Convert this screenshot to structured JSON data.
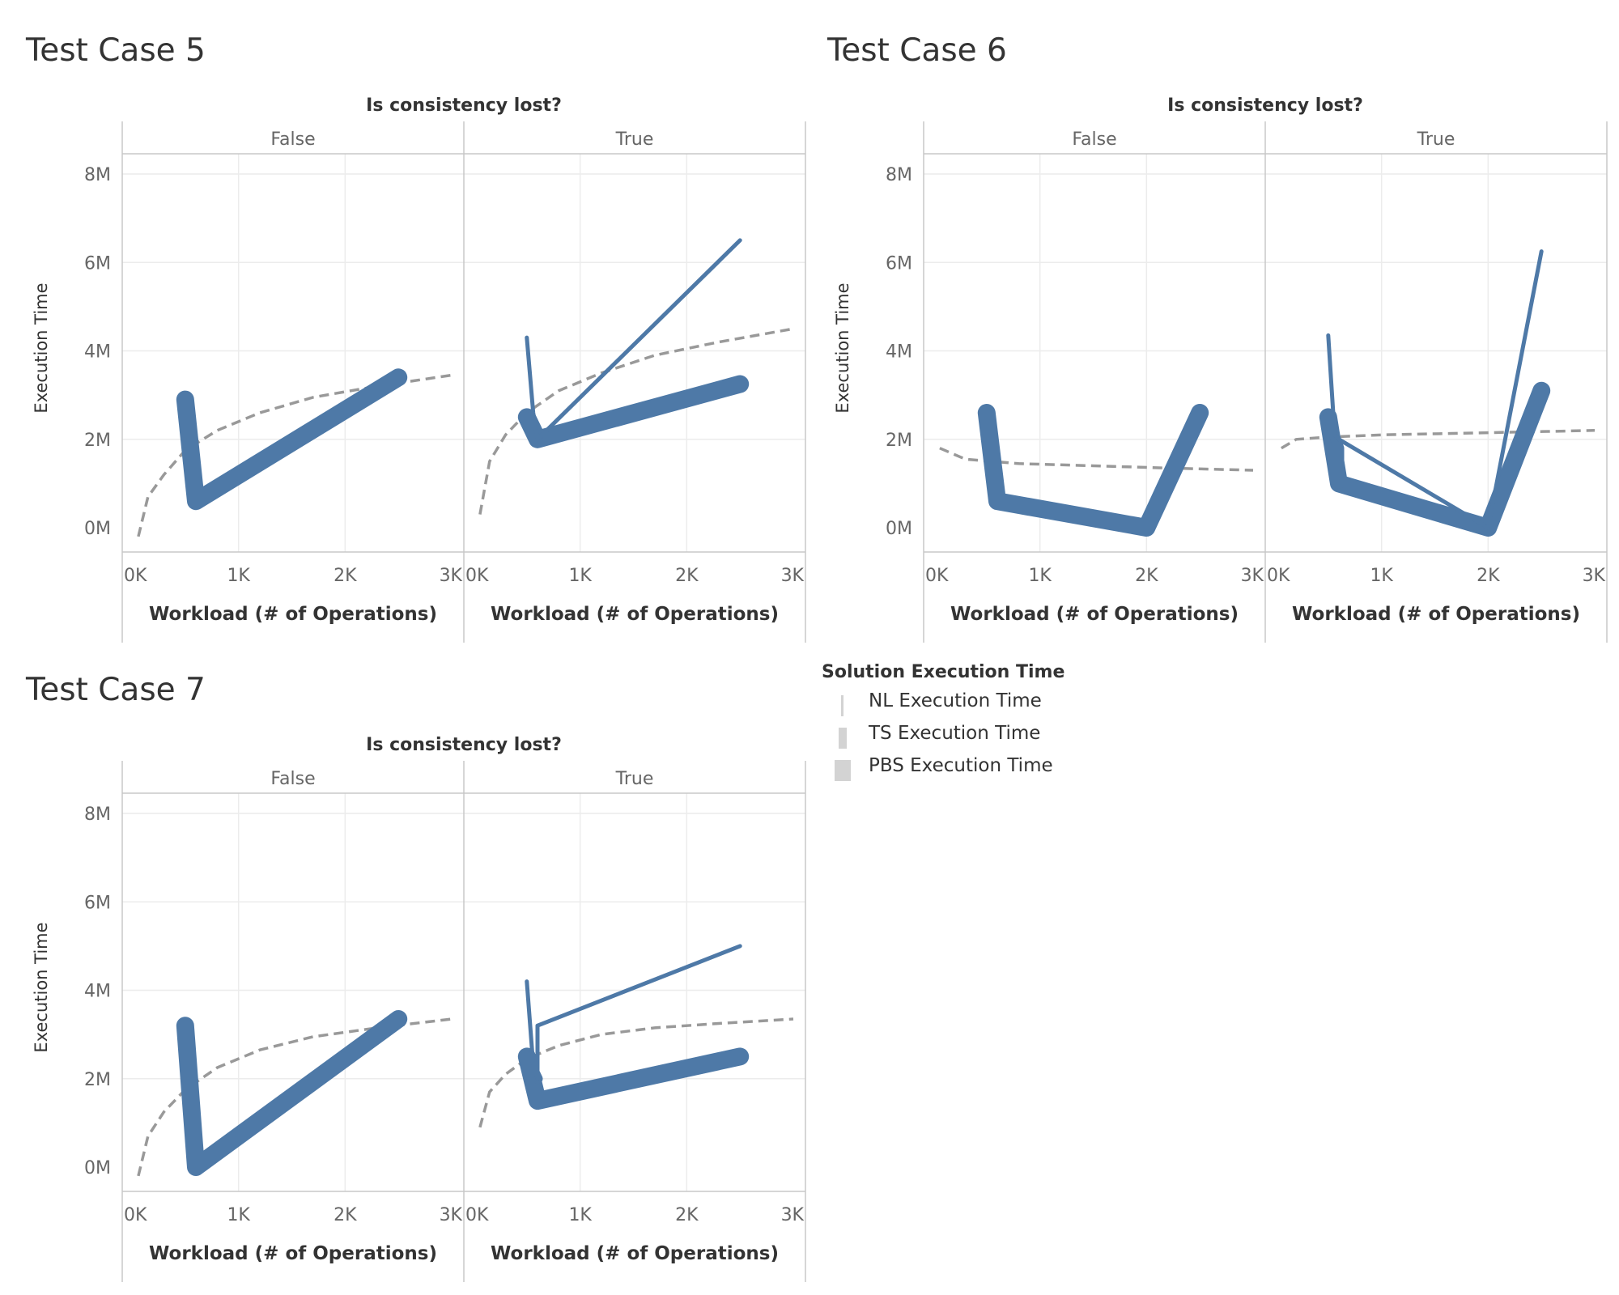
{
  "colors": {
    "line": "#4e79a7",
    "trend": "#999999",
    "grid": "#ececec",
    "axis": "#c8c8c8",
    "tick_text": "#666666",
    "text": "#333333",
    "legend_swatch": "#d3d3d3"
  },
  "chart_data": [
    {
      "type": "line",
      "title": "Test Case 5",
      "facet_title": "Is consistency lost?",
      "xlabel": "Workload (# of Operations)",
      "ylabel": "Execution Time",
      "xlim": [
        0,
        3000
      ],
      "ylim": [
        0,
        8000000
      ],
      "x_ticks": [
        "0K",
        "1K",
        "2K",
        "3K"
      ],
      "y_ticks": [
        "0M",
        "2M",
        "4M",
        "6M",
        "8M"
      ],
      "grid": true,
      "panels": [
        {
          "label": "False",
          "series": [
            {
              "encoding": "PBS Execution Time",
              "x": [
                500,
                600,
                2500
              ],
              "y": [
                2900000,
                600000,
                3400000
              ]
            }
          ],
          "trend": {
            "x": [
              60,
              150,
              300,
              500,
              800,
              1200,
              1700,
              2300,
              3000
            ],
            "y": [
              -200000,
              700000,
              1200000,
              1750000,
              2200000,
              2600000,
              2950000,
              3200000,
              3450000
            ]
          }
        },
        {
          "label": "True",
          "series": [
            {
              "encoding": "PBS Execution Time",
              "x": [
                500,
                600,
                2500
              ],
              "y": [
                2500000,
                2000000,
                3250000
              ]
            },
            {
              "encoding": "TS Execution Time",
              "x": [
                500,
                600
              ],
              "y": [
                2500000,
                2000000
              ]
            },
            {
              "encoding": "NL Execution Time",
              "x": [
                500,
                560,
                600,
                2500
              ],
              "y": [
                4300000,
                2600000,
                2000000,
                6500000
              ]
            }
          ],
          "trend": {
            "x": [
              60,
              150,
              300,
              500,
              800,
              1200,
              1700,
              2300,
              3000
            ],
            "y": [
              300000,
              1500000,
              2100000,
              2600000,
              3100000,
              3500000,
              3900000,
              4200000,
              4500000
            ]
          }
        }
      ]
    },
    {
      "type": "line",
      "title": "Test Case 6",
      "facet_title": "Is consistency lost?",
      "xlabel": "Workload (# of Operations)",
      "ylabel": "Execution Time",
      "xlim": [
        0,
        3000
      ],
      "ylim": [
        0,
        8000000
      ],
      "x_ticks": [
        "0K",
        "1K",
        "2K",
        "3K"
      ],
      "y_ticks": [
        "0M",
        "2M",
        "4M",
        "6M",
        "8M"
      ],
      "grid": true,
      "panels": [
        {
          "label": "False",
          "series": [
            {
              "encoding": "PBS Execution Time",
              "x": [
                500,
                600,
                2000,
                2500
              ],
              "y": [
                2600000,
                600000,
                0,
                2600000
              ]
            }
          ],
          "trend": {
            "x": [
              60,
              300,
              800,
              1500,
              2200,
              3000
            ],
            "y": [
              1800000,
              1550000,
              1450000,
              1400000,
              1350000,
              1300000
            ]
          }
        },
        {
          "label": "True",
          "series": [
            {
              "encoding": "PBS Execution Time",
              "x": [
                500,
                600,
                2000,
                2500
              ],
              "y": [
                2500000,
                1000000,
                0,
                3100000
              ]
            },
            {
              "encoding": "TS Execution Time",
              "x": [
                500,
                600,
                600
              ],
              "y": [
                2500000,
                1800000,
                1000000
              ]
            },
            {
              "encoding": "NL Execution Time",
              "x": [
                500,
                560,
                600,
                2000,
                2500
              ],
              "y": [
                4350000,
                2100000,
                2000000,
                0,
                6250000
              ]
            }
          ],
          "trend": {
            "x": [
              60,
              200,
              500,
              1000,
              2000,
              3000
            ],
            "y": [
              1800000,
              2000000,
              2050000,
              2100000,
              2150000,
              2200000
            ]
          }
        }
      ]
    },
    {
      "type": "line",
      "title": "Test Case 7",
      "facet_title": "Is consistency lost?",
      "xlabel": "Workload (# of Operations)",
      "ylabel": "Execution Time",
      "xlim": [
        0,
        3000
      ],
      "ylim": [
        0,
        8000000
      ],
      "x_ticks": [
        "0K",
        "1K",
        "2K",
        "3K"
      ],
      "y_ticks": [
        "0M",
        "2M",
        "4M",
        "6M",
        "8M"
      ],
      "grid": true,
      "panels": [
        {
          "label": "False",
          "series": [
            {
              "encoding": "PBS Execution Time",
              "x": [
                500,
                600,
                2500
              ],
              "y": [
                3200000,
                0,
                3350000
              ]
            }
          ],
          "trend": {
            "x": [
              60,
              150,
              300,
              500,
              800,
              1200,
              1700,
              2300,
              3000
            ],
            "y": [
              -200000,
              700000,
              1250000,
              1750000,
              2250000,
              2650000,
              2950000,
              3150000,
              3350000
            ]
          }
        },
        {
          "label": "True",
          "series": [
            {
              "encoding": "PBS Execution Time",
              "x": [
                500,
                600,
                2500
              ],
              "y": [
                2500000,
                1500000,
                2500000
              ]
            },
            {
              "encoding": "TS Execution Time",
              "x": [
                500,
                600
              ],
              "y": [
                2500000,
                2000000
              ]
            },
            {
              "encoding": "NL Execution Time",
              "x": [
                500,
                560,
                600,
                600,
                2500
              ],
              "y": [
                4200000,
                2300000,
                2000000,
                3200000,
                5000000
              ]
            }
          ],
          "trend": {
            "x": [
              60,
              150,
              300,
              500,
              800,
              1200,
              1700,
              2300,
              3000
            ],
            "y": [
              900000,
              1700000,
              2100000,
              2450000,
              2750000,
              3000000,
              3150000,
              3250000,
              3350000
            ]
          }
        }
      ]
    }
  ],
  "legend": {
    "title": "Solution Execution Time",
    "items": [
      {
        "label": "NL Execution Time",
        "encoding": "thin"
      },
      {
        "label": "TS Execution Time",
        "encoding": "medium"
      },
      {
        "label": "PBS Execution Time",
        "encoding": "thick"
      }
    ]
  }
}
